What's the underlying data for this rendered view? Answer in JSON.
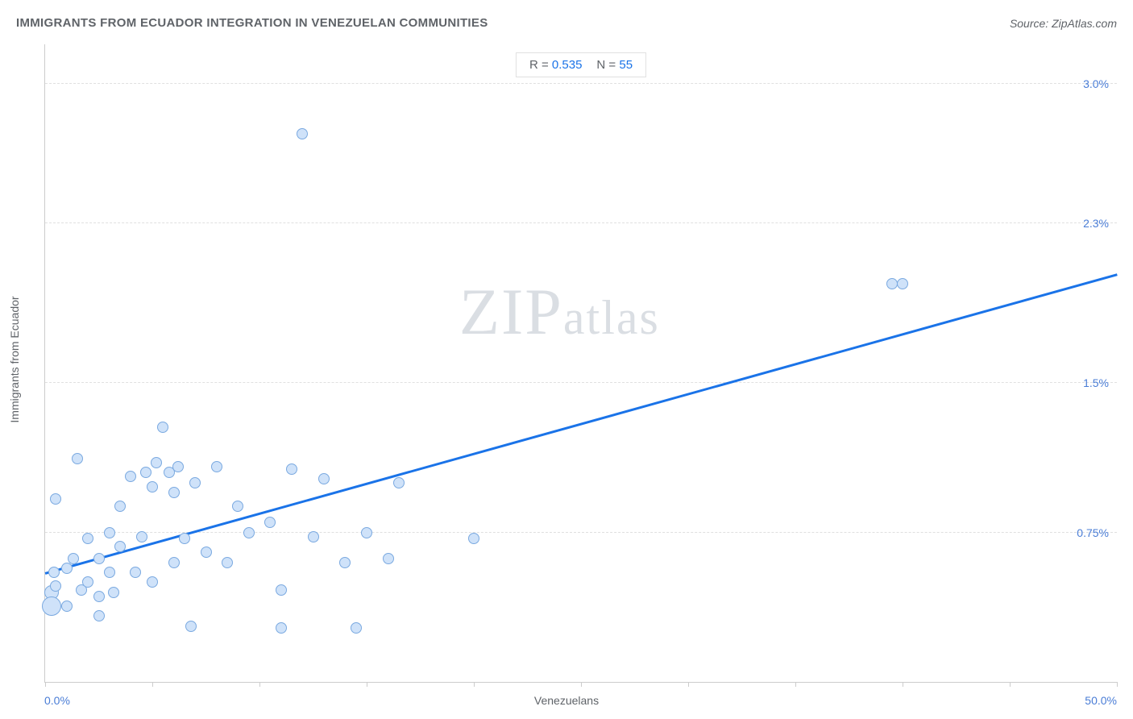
{
  "title": "IMMIGRANTS FROM ECUADOR INTEGRATION IN VENEZUELAN COMMUNITIES",
  "source": "Source: ZipAtlas.com",
  "chart": {
    "type": "scatter",
    "xlabel": "Venezuelans",
    "ylabel": "Immigrants from Ecuador",
    "xlim": [
      0,
      50
    ],
    "ylim": [
      0,
      3.2
    ],
    "xaxis_min_label": "0.0%",
    "xaxis_max_label": "50.0%",
    "ytick_labels": [
      {
        "value": 0.75,
        "label": "0.75%"
      },
      {
        "value": 1.5,
        "label": "1.5%"
      },
      {
        "value": 2.3,
        "label": "2.3%"
      },
      {
        "value": 3.0,
        "label": "3.0%"
      }
    ],
    "xtick_positions": [
      0,
      5,
      10,
      15,
      20,
      25,
      30,
      35,
      40,
      45,
      50
    ],
    "point_fill": "#cfe2f9",
    "point_stroke": "#7aa9e0",
    "point_radius": 7,
    "trend_color": "#1a73e8",
    "trend_y_at_x0": 0.55,
    "trend_y_at_x50": 2.05,
    "grid_color": "#e0e0e0",
    "text_color": "#5f6368",
    "axis_value_color": "#4a7dd6",
    "background": "#ffffff",
    "stats": {
      "r_label": "R =",
      "r_value": "0.535",
      "n_label": "N =",
      "n_value": "55"
    },
    "watermark": {
      "prefix": "ZIP",
      "suffix": "atlas"
    },
    "points": [
      {
        "x": 0.3,
        "y": 0.45,
        "r": 9
      },
      {
        "x": 0.3,
        "y": 0.38,
        "r": 12
      },
      {
        "x": 0.4,
        "y": 0.55
      },
      {
        "x": 0.5,
        "y": 0.48
      },
      {
        "x": 0.5,
        "y": 0.92
      },
      {
        "x": 1.0,
        "y": 0.57
      },
      {
        "x": 1.0,
        "y": 0.38
      },
      {
        "x": 1.3,
        "y": 0.62
      },
      {
        "x": 1.5,
        "y": 1.12
      },
      {
        "x": 1.7,
        "y": 0.46
      },
      {
        "x": 2.0,
        "y": 0.5
      },
      {
        "x": 2.0,
        "y": 0.72
      },
      {
        "x": 2.5,
        "y": 0.62
      },
      {
        "x": 2.5,
        "y": 0.43
      },
      {
        "x": 2.5,
        "y": 0.33
      },
      {
        "x": 3.0,
        "y": 0.75
      },
      {
        "x": 3.0,
        "y": 0.55
      },
      {
        "x": 3.2,
        "y": 0.45
      },
      {
        "x": 3.5,
        "y": 0.68
      },
      {
        "x": 3.5,
        "y": 0.88
      },
      {
        "x": 4.0,
        "y": 1.03
      },
      {
        "x": 4.2,
        "y": 0.55
      },
      {
        "x": 4.5,
        "y": 0.73
      },
      {
        "x": 4.7,
        "y": 1.05
      },
      {
        "x": 5.0,
        "y": 0.98
      },
      {
        "x": 5.0,
        "y": 0.5
      },
      {
        "x": 5.2,
        "y": 1.1
      },
      {
        "x": 5.5,
        "y": 1.28
      },
      {
        "x": 5.8,
        "y": 1.05
      },
      {
        "x": 6.0,
        "y": 0.6
      },
      {
        "x": 6.2,
        "y": 1.08
      },
      {
        "x": 6.5,
        "y": 0.72
      },
      {
        "x": 6.8,
        "y": 0.28
      },
      {
        "x": 7.0,
        "y": 1.0
      },
      {
        "x": 7.5,
        "y": 0.65
      },
      {
        "x": 8.0,
        "y": 1.08
      },
      {
        "x": 8.5,
        "y": 0.6
      },
      {
        "x": 9.0,
        "y": 0.88
      },
      {
        "x": 9.5,
        "y": 0.75
      },
      {
        "x": 10.5,
        "y": 0.8
      },
      {
        "x": 11.0,
        "y": 0.46
      },
      {
        "x": 11.0,
        "y": 0.27
      },
      {
        "x": 11.5,
        "y": 1.07
      },
      {
        "x": 12.0,
        "y": 2.75
      },
      {
        "x": 12.5,
        "y": 0.73
      },
      {
        "x": 13.0,
        "y": 1.02
      },
      {
        "x": 14.0,
        "y": 0.6
      },
      {
        "x": 14.5,
        "y": 0.27
      },
      {
        "x": 15.0,
        "y": 0.75
      },
      {
        "x": 16.0,
        "y": 0.62
      },
      {
        "x": 16.5,
        "y": 1.0
      },
      {
        "x": 20.0,
        "y": 0.72
      },
      {
        "x": 39.5,
        "y": 2.0
      },
      {
        "x": 40.0,
        "y": 2.0
      },
      {
        "x": 6.0,
        "y": 0.95
      }
    ]
  }
}
